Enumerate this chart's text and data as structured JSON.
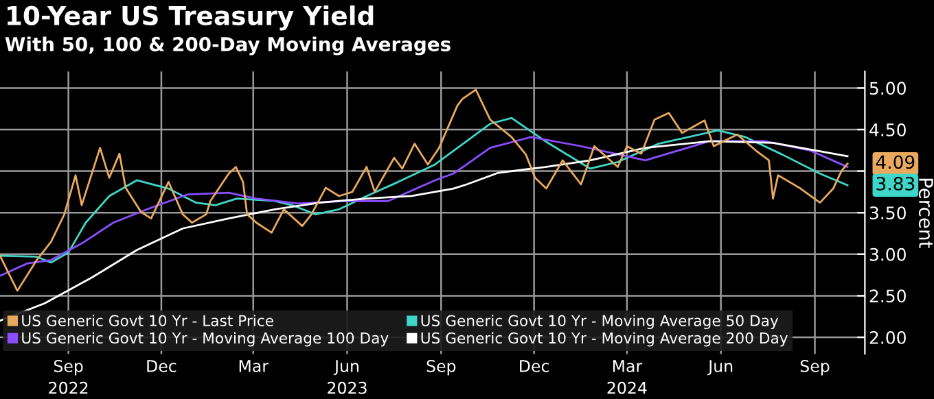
{
  "chart_data": {
    "type": "line",
    "title": "10-Year US Treasury Yield",
    "subtitle": "With 50, 100 & 200-Day Moving Averages",
    "ylabel": "Percent",
    "xlim": [
      "2022-06-26",
      "2024-10-20"
    ],
    "xticks": [
      {
        "value": "2022-09-01",
        "label": "Sep\n2022"
      },
      {
        "value": "2022-12-01",
        "label": "Dec"
      },
      {
        "value": "2023-03-01",
        "label": "Mar"
      },
      {
        "value": "2023-06-01",
        "label": "Jun\n2023"
      },
      {
        "value": "2023-09-01",
        "label": "Sep"
      },
      {
        "value": "2023-12-01",
        "label": "Dec"
      },
      {
        "value": "2024-03-01",
        "label": "Mar\n2024"
      },
      {
        "value": "2024-06-01",
        "label": "Jun"
      },
      {
        "value": "2024-09-01",
        "label": "Sep"
      }
    ],
    "ylim": [
      1.8,
      5.2
    ],
    "yticks": [
      {
        "value": 2.0,
        "label": "2.00"
      },
      {
        "value": 2.5,
        "label": "2.50"
      },
      {
        "value": 3.0,
        "label": "3.00"
      },
      {
        "value": 3.5,
        "label": "3.50"
      },
      {
        "value": 4.0,
        "label": null
      },
      {
        "value": 4.5,
        "label": "4.50"
      },
      {
        "value": 5.0,
        "label": "5.00"
      }
    ],
    "grid": true,
    "legend": "bottom left",
    "series": [
      {
        "name": "US Generic Govt 10 Yr - Last Price",
        "color": "#e9a95e",
        "x": [
          "2022-06-26",
          "2022-07-13",
          "2022-08-01",
          "2022-08-15",
          "2022-08-28",
          "2022-09-08",
          "2022-09-14",
          "2022-10-02",
          "2022-10-11",
          "2022-10-21",
          "2022-10-27",
          "2022-11-11",
          "2022-11-21",
          "2022-12-08",
          "2022-12-22",
          "2022-12-31",
          "2023-01-14",
          "2023-01-18",
          "2023-02-05",
          "2023-02-12",
          "2023-02-19",
          "2023-02-23",
          "2023-03-04",
          "2023-03-19",
          "2023-03-31",
          "2023-04-18",
          "2023-04-27",
          "2023-05-11",
          "2023-05-24",
          "2023-06-06",
          "2023-06-20",
          "2023-06-28",
          "2023-07-17",
          "2023-07-25",
          "2023-08-06",
          "2023-08-19",
          "2023-08-30",
          "2023-09-17",
          "2023-09-22",
          "2023-10-05",
          "2023-10-19",
          "2023-11-09",
          "2023-11-23",
          "2023-12-02",
          "2023-12-13",
          "2023-12-29",
          "2024-01-16",
          "2024-01-29",
          "2024-02-21",
          "2024-03-01",
          "2024-03-15",
          "2024-03-28",
          "2024-04-11",
          "2024-04-24",
          "2024-05-16",
          "2024-05-25",
          "2024-06-17",
          "2024-07-05",
          "2024-07-18",
          "2024-07-22",
          "2024-07-27",
          "2024-08-18",
          "2024-09-06",
          "2024-09-19",
          "2024-09-27",
          "2024-10-03"
        ],
        "values": [
          2.98,
          2.56,
          2.93,
          3.15,
          3.48,
          3.95,
          3.59,
          4.28,
          3.92,
          4.21,
          3.8,
          3.51,
          3.43,
          3.87,
          3.48,
          3.38,
          3.48,
          3.64,
          3.97,
          4.05,
          3.87,
          3.48,
          3.38,
          3.26,
          3.54,
          3.34,
          3.48,
          3.8,
          3.7,
          3.75,
          4.05,
          3.75,
          4.16,
          4.03,
          4.33,
          4.08,
          4.28,
          4.79,
          4.87,
          4.98,
          4.62,
          4.41,
          4.2,
          3.92,
          3.79,
          4.13,
          3.84,
          4.3,
          4.05,
          4.3,
          4.21,
          4.62,
          4.7,
          4.46,
          4.61,
          4.3,
          4.44,
          4.25,
          4.13,
          3.67,
          3.95,
          3.79,
          3.62,
          3.79,
          4.0,
          4.09
        ]
      },
      {
        "name": "US Generic Govt 10 Yr - Moving Average 50 Day",
        "color": "#3fd6c8",
        "x": [
          "2022-06-26",
          "2022-08-01",
          "2022-08-15",
          "2022-09-01",
          "2022-09-18",
          "2022-10-11",
          "2022-11-07",
          "2022-12-08",
          "2023-01-04",
          "2023-01-23",
          "2023-02-13",
          "2023-03-22",
          "2023-04-08",
          "2023-05-01",
          "2023-05-24",
          "2023-06-20",
          "2023-07-21",
          "2023-08-26",
          "2023-09-26",
          "2023-10-19",
          "2023-11-09",
          "2023-12-12",
          "2024-01-25",
          "2024-02-21",
          "2024-04-01",
          "2024-05-29",
          "2024-06-25",
          "2024-07-31",
          "2024-09-06",
          "2024-10-03"
        ],
        "values": [
          2.98,
          2.97,
          2.9,
          3.02,
          3.38,
          3.7,
          3.89,
          3.79,
          3.62,
          3.59,
          3.67,
          3.64,
          3.59,
          3.48,
          3.54,
          3.7,
          3.87,
          4.08,
          4.36,
          4.57,
          4.64,
          4.36,
          4.03,
          4.11,
          4.33,
          4.49,
          4.41,
          4.2,
          3.97,
          3.83
        ]
      },
      {
        "name": "US Generic Govt 10 Yr - Moving Average 100 Day",
        "color": "#8b4dff",
        "x": [
          "2022-06-26",
          "2022-07-23",
          "2022-08-15",
          "2022-09-14",
          "2022-10-15",
          "2022-11-21",
          "2022-12-27",
          "2023-02-05",
          "2023-03-04",
          "2023-04-14",
          "2023-05-28",
          "2023-07-11",
          "2023-08-26",
          "2023-09-13",
          "2023-09-26",
          "2023-10-19",
          "2023-11-28",
          "2024-01-16",
          "2024-03-19",
          "2024-05-21",
          "2024-07-14",
          "2024-08-27",
          "2024-10-03"
        ],
        "values": [
          2.74,
          2.89,
          2.93,
          3.13,
          3.38,
          3.56,
          3.72,
          3.74,
          3.67,
          3.61,
          3.64,
          3.64,
          3.89,
          3.97,
          4.08,
          4.28,
          4.41,
          4.3,
          4.13,
          4.36,
          4.36,
          4.25,
          4.05
        ]
      },
      {
        "name": "US Generic Govt 10 Yr - Moving Average 200 Day",
        "color": "#ffffff",
        "x": [
          "2022-06-26",
          "2022-08-09",
          "2022-09-24",
          "2022-11-07",
          "2022-12-22",
          "2023-02-05",
          "2023-03-22",
          "2023-05-05",
          "2023-06-20",
          "2023-08-03",
          "2023-09-13",
          "2023-09-26",
          "2023-10-27",
          "2023-12-12",
          "2024-01-25",
          "2024-03-19",
          "2024-05-21",
          "2024-07-22",
          "2024-10-03"
        ],
        "values": [
          2.2,
          2.41,
          2.72,
          3.05,
          3.31,
          3.43,
          3.54,
          3.62,
          3.67,
          3.7,
          3.79,
          3.84,
          3.98,
          4.05,
          4.13,
          4.28,
          4.36,
          4.34,
          4.18
        ]
      }
    ],
    "annotations": [
      {
        "text": "4.09",
        "x": "2024-10-03",
        "y": 4.09
      },
      {
        "text": "3.83",
        "x": "2024-10-03",
        "y": 3.83
      }
    ]
  }
}
